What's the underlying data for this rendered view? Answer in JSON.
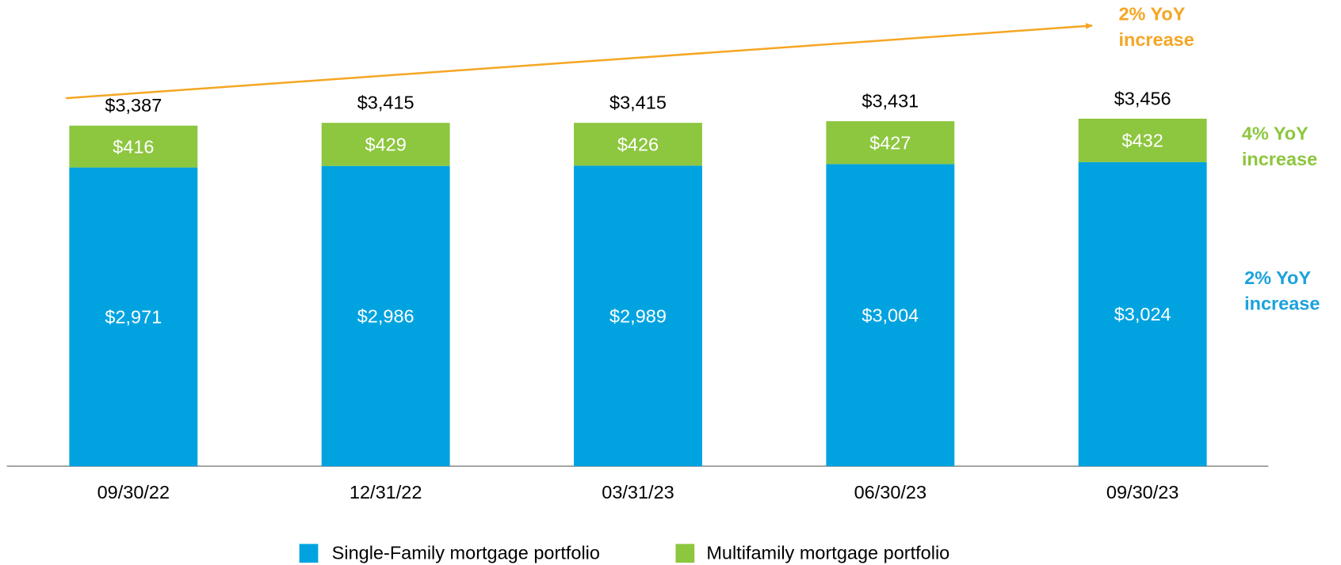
{
  "chart_data": {
    "type": "stacked_bar",
    "categories": [
      "09/30/22",
      "12/31/22",
      "03/31/23",
      "06/30/23",
      "09/30/23"
    ],
    "series": [
      {
        "name": "Single-Family mortgage portfolio",
        "color": "#00a3e0",
        "values": [
          2971,
          2986,
          2989,
          3004,
          3024
        ],
        "value_labels": [
          "$2,971",
          "$2,986",
          "$2,989",
          "$3,004",
          "$3,024"
        ]
      },
      {
        "name": "Multifamily mortgage portfolio",
        "color": "#8dc63f",
        "values": [
          416,
          429,
          426,
          427,
          432
        ],
        "value_labels": [
          "$416",
          "$429",
          "$426",
          "$427",
          "$432"
        ]
      }
    ],
    "totals": {
      "values": [
        3387,
        3415,
        3415,
        3431,
        3456
      ],
      "value_labels": [
        "$3,387",
        "$3,415",
        "$3,415",
        "$3,431",
        "$3,456"
      ]
    },
    "annotations": [
      {
        "lines": [
          "2% YoY",
          "increase"
        ],
        "color": "#f5a623"
      },
      {
        "lines": [
          "4% YoY",
          "increase"
        ],
        "color": "#8dc63f"
      },
      {
        "lines": [
          "2% YoY",
          "increase"
        ],
        "color": "#1ba2dc"
      }
    ],
    "arrow_color": "#f5a623"
  }
}
